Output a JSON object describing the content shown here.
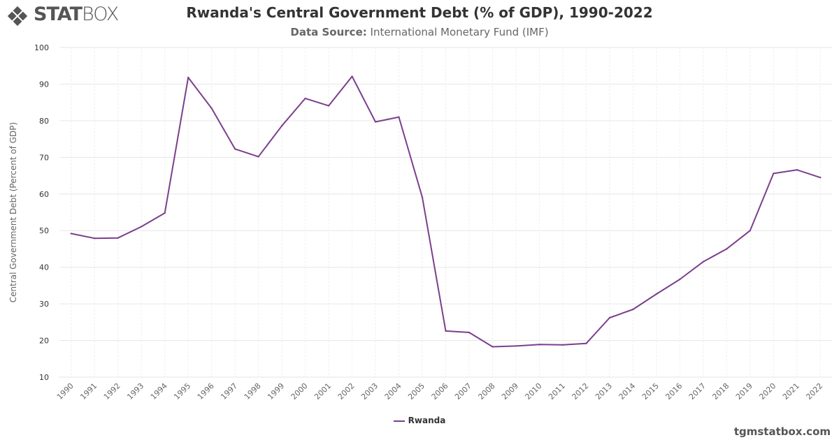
{
  "header": {
    "logo_bold": "STAT",
    "logo_light": "BOX",
    "title": "Rwanda's Central Government Debt (% of GDP), 1990-2022",
    "subtitle_label": "Data Source:",
    "subtitle_text": "International Monetary Fund (IMF)"
  },
  "footer": {
    "site": "tgmstatbox.com"
  },
  "colors": {
    "series": "#7b3f8c",
    "grid": "#e6e6e6",
    "axis": "#666666"
  },
  "chart_data": {
    "type": "line",
    "title": "Rwanda's Central Government Debt (% of GDP), 1990-2022",
    "xlabel": "",
    "ylabel": "Central Government Debt (Percent of GDP)",
    "ylim": [
      10,
      100
    ],
    "yticks": [
      10,
      20,
      30,
      40,
      50,
      60,
      70,
      80,
      90,
      100
    ],
    "grid": true,
    "legend_position": "bottom-center",
    "x": [
      "1990",
      "1991",
      "1992",
      "1993",
      "1994",
      "1995",
      "1996",
      "1997",
      "1998",
      "1999",
      "2000",
      "2001",
      "2002",
      "2003",
      "2004",
      "2005",
      "2006",
      "2007",
      "2008",
      "2009",
      "2010",
      "2011",
      "2012",
      "2013",
      "2014",
      "2015",
      "2016",
      "2017",
      "2018",
      "2019",
      "2020",
      "2021",
      "2022"
    ],
    "series": [
      {
        "name": "Rwanda",
        "values": [
          49.2,
          47.9,
          48.0,
          51.1,
          54.8,
          91.8,
          83.4,
          72.3,
          70.2,
          78.6,
          86.1,
          84.1,
          92.1,
          79.7,
          81.0,
          59.1,
          22.6,
          22.2,
          18.3,
          18.5,
          18.9,
          18.8,
          19.2,
          26.2,
          28.5,
          32.7,
          36.7,
          41.5,
          45.0,
          50.0,
          65.6,
          66.6,
          64.5
        ]
      }
    ]
  }
}
